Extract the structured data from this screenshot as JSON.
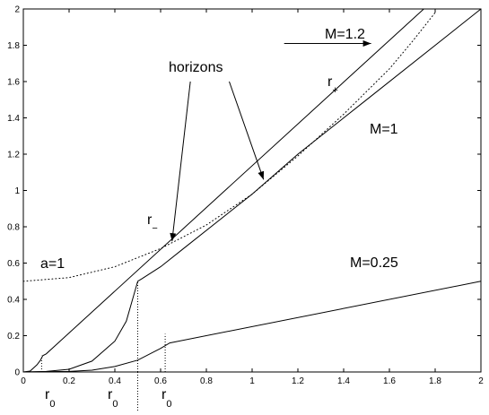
{
  "chart_data": {
    "type": "line",
    "title": "",
    "xlabel": "",
    "ylabel": "",
    "xlim": [
      0,
      2
    ],
    "ylim": [
      0,
      2
    ],
    "grid": false,
    "x_ticks": [
      "0",
      "0.2",
      "0.4",
      "0.6",
      "0.8",
      "1",
      "1.2",
      "1.4",
      "1.6",
      "1.8",
      "2"
    ],
    "y_ticks": [
      "0",
      "0.2",
      "0.4",
      "0.6",
      "0.8",
      "1",
      "1.2",
      "1.4",
      "1.6",
      "1.8",
      "2"
    ],
    "series": [
      {
        "style": "solid",
        "points": [
          [
            0,
            0
          ],
          [
            0.03,
            0.005
          ],
          [
            0.06,
            0.04
          ],
          [
            0.075,
            0.065
          ],
          [
            0.085,
            0.09
          ],
          [
            0.1,
            0.1
          ],
          [
            1.75,
            2.0
          ]
        ]
      },
      {
        "style": "solid",
        "points": [
          [
            0,
            0
          ],
          [
            0.1,
            0.003
          ],
          [
            0.2,
            0.015
          ],
          [
            0.3,
            0.06
          ],
          [
            0.4,
            0.17
          ],
          [
            0.45,
            0.28
          ],
          [
            0.5,
            0.5
          ],
          [
            0.52,
            0.515
          ],
          [
            0.6,
            0.58
          ],
          [
            0.7,
            0.68
          ],
          [
            1.0,
            0.98
          ],
          [
            1.2,
            1.2
          ],
          [
            1.5,
            1.5
          ],
          [
            2.0,
            2.0
          ]
        ]
      },
      {
        "style": "solid",
        "points": [
          [
            0,
            0
          ],
          [
            0.2,
            0.003
          ],
          [
            0.3,
            0.01
          ],
          [
            0.4,
            0.03
          ],
          [
            0.5,
            0.065
          ],
          [
            0.6,
            0.13
          ],
          [
            0.64,
            0.16
          ],
          [
            2.0,
            0.5
          ]
        ]
      },
      {
        "style": "dotted",
        "points": [
          [
            0,
            0.5
          ],
          [
            0.2,
            0.52
          ],
          [
            0.4,
            0.58
          ],
          [
            0.6,
            0.68
          ],
          [
            0.8,
            0.81
          ],
          [
            1.0,
            0.98
          ],
          [
            1.2,
            1.19
          ],
          [
            1.4,
            1.42
          ],
          [
            1.6,
            1.67
          ],
          [
            1.7,
            1.82
          ],
          [
            1.8,
            1.98
          ]
        ]
      }
    ],
    "markers": [
      {
        "x": 0.08,
        "y0": 0,
        "y1": 0.09
      },
      {
        "x": 0.5,
        "y0": 0,
        "y1": 0.5
      },
      {
        "x": 0.62,
        "y0": 0,
        "y1": 0.21
      }
    ],
    "arrows": [
      {
        "from": [
          1.14,
          1.81
        ],
        "to": [
          1.52,
          1.81
        ]
      },
      {
        "from": [
          0.73,
          1.6
        ],
        "to": [
          0.65,
          0.72
        ]
      },
      {
        "from": [
          0.9,
          1.6
        ],
        "to": [
          1.05,
          1.06
        ]
      }
    ],
    "annotations": {
      "horizons": "horizons",
      "m12": "M=1.2",
      "m1": "M=1",
      "m025": "M=0.25",
      "a1": "a=1",
      "r_minus_main": "r",
      "r_minus_sub": "−",
      "r_plus_main": "r",
      "r_plus_sub": "+",
      "r0_main": "r",
      "r0_sub": "0"
    }
  }
}
